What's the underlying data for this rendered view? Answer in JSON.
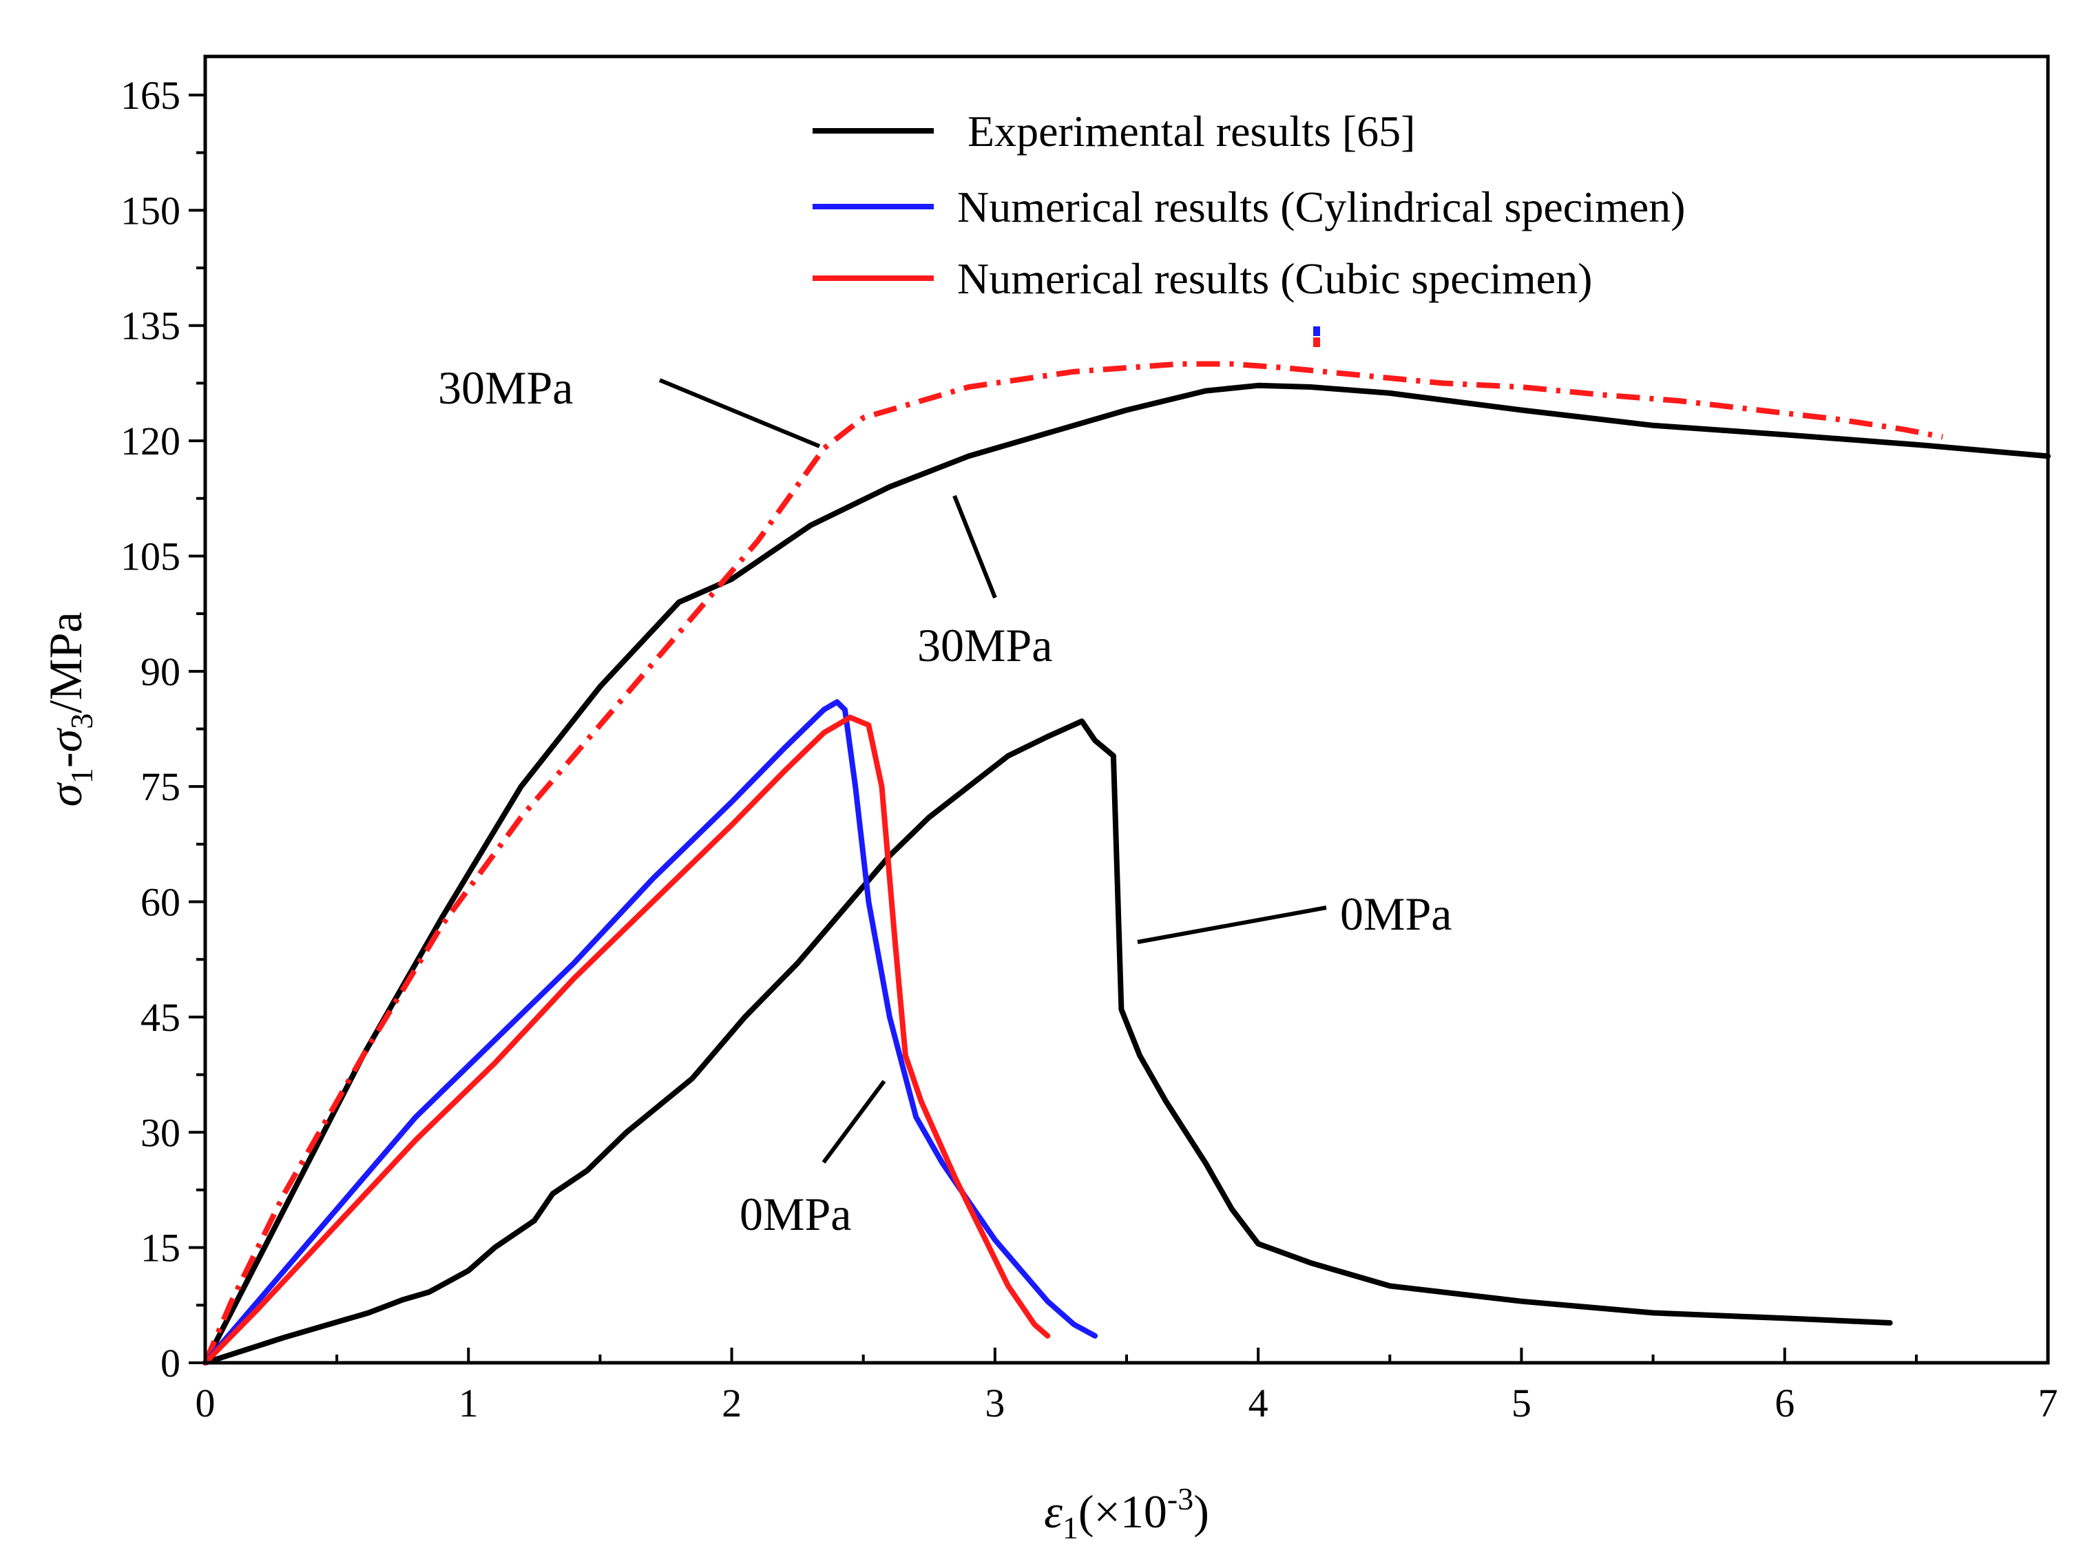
{
  "chart_data": {
    "type": "line",
    "title": "",
    "xlabel": {
      "symbol": "ε",
      "sub": "1",
      "prefix": "(×10",
      "sup": "-3",
      "suffix": ")"
    },
    "ylabel": {
      "s1": "σ",
      "sub1": "1",
      "dash": "-",
      "s3": "σ",
      "sub3": "3",
      "unit": "/MPa"
    },
    "xlim": [
      0,
      7
    ],
    "ylim": [
      0,
      170
    ],
    "xticks": [
      0,
      1,
      2,
      3,
      4,
      5,
      6,
      7
    ],
    "yticks": [
      0,
      15,
      30,
      45,
      60,
      75,
      90,
      105,
      120,
      135,
      150,
      165
    ],
    "colors": {
      "experimental": "#000000",
      "cylindrical": "#1a1aff",
      "cubic": "#ff1a1a"
    },
    "legend": {
      "position": "top-center",
      "entries": [
        {
          "label": "Experimental results [65]",
          "color": "#000000"
        },
        {
          "label": "Numerical results (Cylindrical specimen)",
          "color": "#1a1aff"
        },
        {
          "label": "Numerical results (Cubic specimen)",
          "color": "#ff1a1a"
        }
      ]
    },
    "series": [
      {
        "name": "Experimental 30MPa",
        "color": "#000000",
        "dash": "solid",
        "x": [
          0,
          0.3,
          0.6,
          0.9,
          1.2,
          1.5,
          1.8,
          2.0,
          2.3,
          2.6,
          2.9,
          3.2,
          3.5,
          3.8,
          4.0,
          4.2,
          4.5,
          5.0,
          5.5,
          6.0,
          6.5,
          7.0
        ],
        "y": [
          0,
          20,
          40,
          58,
          75,
          88,
          99,
          102,
          109,
          114,
          118,
          121,
          124,
          126.5,
          127.2,
          127,
          126.2,
          124,
          122,
          120.8,
          119.5,
          118
        ]
      },
      {
        "name": "Cubic 30MPa",
        "color": "#ff1a1a",
        "dash": "dashdot",
        "x": [
          0,
          0.1,
          0.3,
          0.6,
          0.9,
          1.2,
          1.5,
          1.8,
          2.1,
          2.35,
          2.5,
          2.7,
          2.9,
          3.1,
          3.3,
          3.5,
          3.7,
          3.9,
          4.1,
          4.4,
          4.7,
          5.0,
          5.3,
          5.6,
          5.9,
          6.2,
          6.45,
          6.6
        ],
        "y": [
          0,
          8,
          22,
          40,
          57,
          71,
          83,
          95,
          107,
          119,
          123,
          125,
          127,
          128,
          129,
          129.5,
          130,
          130,
          129.5,
          128.5,
          127.5,
          127,
          126,
          125.2,
          124,
          122.8,
          121.5,
          120.5
        ]
      },
      {
        "name": "Experimental 0MPa",
        "color": "#000000",
        "dash": "solid",
        "x": [
          0,
          0.3,
          0.62,
          0.75,
          0.85,
          1.0,
          1.1,
          1.25,
          1.32,
          1.45,
          1.6,
          1.85,
          2.05,
          2.25,
          2.45,
          2.6,
          2.75,
          2.9,
          3.05,
          3.2,
          3.33,
          3.38,
          3.45,
          3.48,
          3.55,
          3.65,
          3.8,
          3.9,
          4.0,
          4.2,
          4.5,
          5.0,
          5.5,
          6.0,
          6.4
        ],
        "y": [
          0,
          3.3,
          6.5,
          8.2,
          9.2,
          12,
          15,
          18.5,
          22,
          25,
          30,
          37,
          45,
          52,
          60,
          66,
          71,
          75,
          79,
          81.5,
          83.5,
          81,
          79,
          46,
          40,
          34,
          26,
          20,
          15.5,
          13,
          10,
          8,
          6.5,
          5.8,
          5.2
        ]
      },
      {
        "name": "Cylindrical 0MPa",
        "color": "#1a1aff",
        "dash": "solid",
        "x": [
          0,
          0.2,
          0.5,
          0.8,
          1.1,
          1.4,
          1.7,
          2.0,
          2.2,
          2.35,
          2.4,
          2.43,
          2.47,
          2.52,
          2.6,
          2.7,
          2.8,
          2.9,
          3.0,
          3.1,
          3.2,
          3.3,
          3.38
        ],
        "y": [
          0,
          8,
          20,
          32,
          42,
          52,
          63,
          73,
          80,
          85,
          86,
          85,
          75,
          60,
          45,
          32,
          26,
          21,
          16,
          12,
          8,
          5,
          3.5
        ]
      },
      {
        "name": "Cubic 0MPa",
        "color": "#ff1a1a",
        "dash": "solid",
        "x": [
          0,
          0.2,
          0.5,
          0.8,
          1.1,
          1.4,
          1.7,
          2.0,
          2.2,
          2.35,
          2.45,
          2.52,
          2.57,
          2.62,
          2.66,
          2.72,
          2.85,
          2.95,
          3.05,
          3.15,
          3.2
        ],
        "y": [
          0,
          7,
          18,
          29,
          39,
          50,
          60,
          70,
          77,
          82,
          84,
          83,
          75,
          55,
          40,
          34,
          24,
          17,
          10,
          5,
          3.5
        ]
      }
    ],
    "annotations": [
      {
        "text": "30MPa",
        "target": "Cubic 30MPa"
      },
      {
        "text": "30MPa",
        "target": "Experimental 30MPa"
      },
      {
        "text": "0MPa",
        "target": "Experimental 0MPa"
      },
      {
        "text": "0MPa",
        "target": "Numerical 0MPa"
      }
    ]
  }
}
